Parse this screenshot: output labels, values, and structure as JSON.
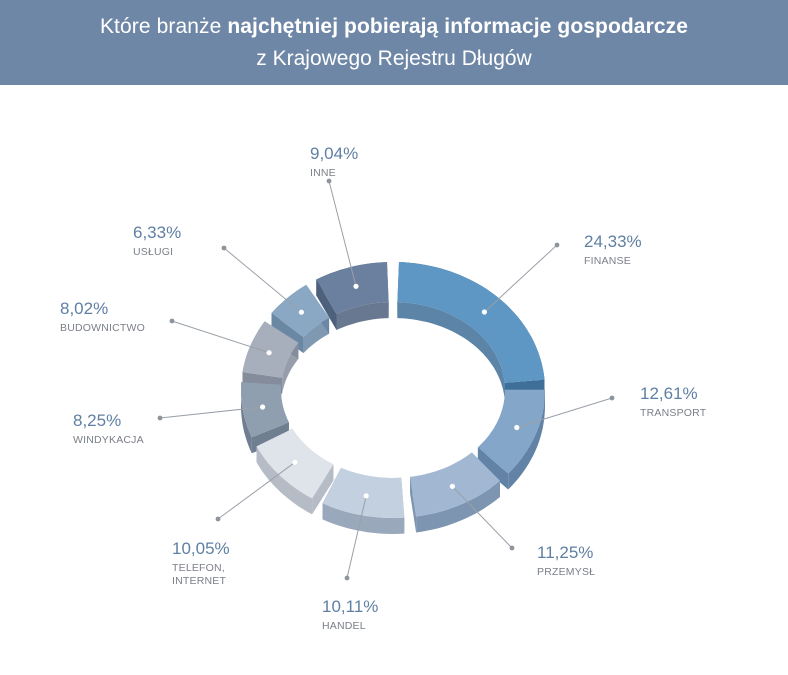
{
  "header": {
    "title_prefix": "Które branże ",
    "title_bold": "najchętniej pobierają informacje gospodarcze",
    "subtitle": "z Krajowego Rejestru Długów"
  },
  "chart_data": {
    "type": "pie",
    "style": "3d-ring",
    "unit": "%",
    "slices": [
      {
        "label": "FINANSE",
        "value": 24.33,
        "display": "24,33%",
        "color": "#5e97c3",
        "side_color": "#3e6f98"
      },
      {
        "label": "TRANSPORT",
        "value": 12.61,
        "display": "12,61%",
        "color": "#84a6c8",
        "side_color": "#6283a6"
      },
      {
        "label": "PRZEMYSŁ",
        "value": 11.25,
        "display": "11,25%",
        "color": "#a2b8d2",
        "side_color": "#7e95b2"
      },
      {
        "label": "HANDEL",
        "value": 10.11,
        "display": "10,11%",
        "color": "#c3d0e0",
        "side_color": "#9aa8bc"
      },
      {
        "label": "TELEFON, INTERNET",
        "label_lines": [
          "TELEFON,",
          "INTERNET"
        ],
        "value": 10.05,
        "display": "10,05%",
        "color": "#dfe4ea",
        "side_color": "#b5bcc6"
      },
      {
        "label": "WINDYKACJA",
        "value": 8.25,
        "display": "8,25%",
        "color": "#8f9fb0",
        "side_color": "#6f7e90"
      },
      {
        "label": "BUDOWNICTWO",
        "value": 8.02,
        "display": "8,02%",
        "color": "#a7aebc",
        "side_color": "#858c9c"
      },
      {
        "label": "USŁUGI",
        "value": 6.33,
        "display": "6,33%",
        "color": "#8aa7c3",
        "side_color": "#6a87a4"
      },
      {
        "label": "INNE",
        "value": 9.04,
        "display": "9,04%",
        "color": "#6b809e",
        "side_color": "#4d607c"
      }
    ]
  }
}
